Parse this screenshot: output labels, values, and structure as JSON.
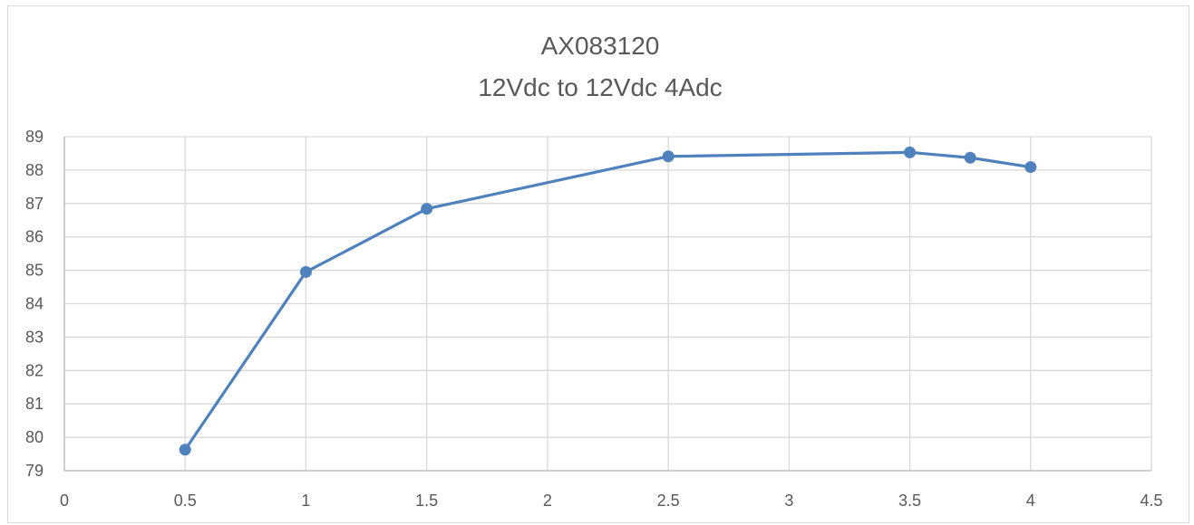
{
  "chart_data": {
    "type": "scatter",
    "title": "AX083120",
    "subtitle": "12Vdc to  12Vdc 4Adc",
    "xlabel": "",
    "ylabel": "",
    "xlim": [
      0,
      4.5
    ],
    "ylim": [
      79,
      89
    ],
    "x_ticks": [
      0,
      0.5,
      1,
      1.5,
      2,
      2.5,
      3,
      3.5,
      4,
      4.5
    ],
    "x_tick_labels": [
      "0",
      "0.5",
      "1",
      "1.5",
      "2",
      "2.5",
      "3",
      "3.5",
      "4",
      "4.5"
    ],
    "y_ticks": [
      79,
      80,
      81,
      82,
      83,
      84,
      85,
      86,
      87,
      88,
      89
    ],
    "y_tick_labels": [
      "79",
      "80",
      "81",
      "82",
      "83",
      "84",
      "85",
      "86",
      "87",
      "88",
      "89"
    ],
    "grid": true,
    "legend": "none",
    "series": [
      {
        "color": "#4f81bd",
        "style": "line-with-markers",
        "points": [
          {
            "x": 0.5,
            "y": 79.63
          },
          {
            "x": 1,
            "y": 84.95
          },
          {
            "x": 1.5,
            "y": 86.84
          },
          {
            "x": 2.5,
            "y": 88.41
          },
          {
            "x": 3.5,
            "y": 88.53
          },
          {
            "x": 3.75,
            "y": 88.37
          },
          {
            "x": 4,
            "y": 88.09
          }
        ]
      }
    ]
  }
}
